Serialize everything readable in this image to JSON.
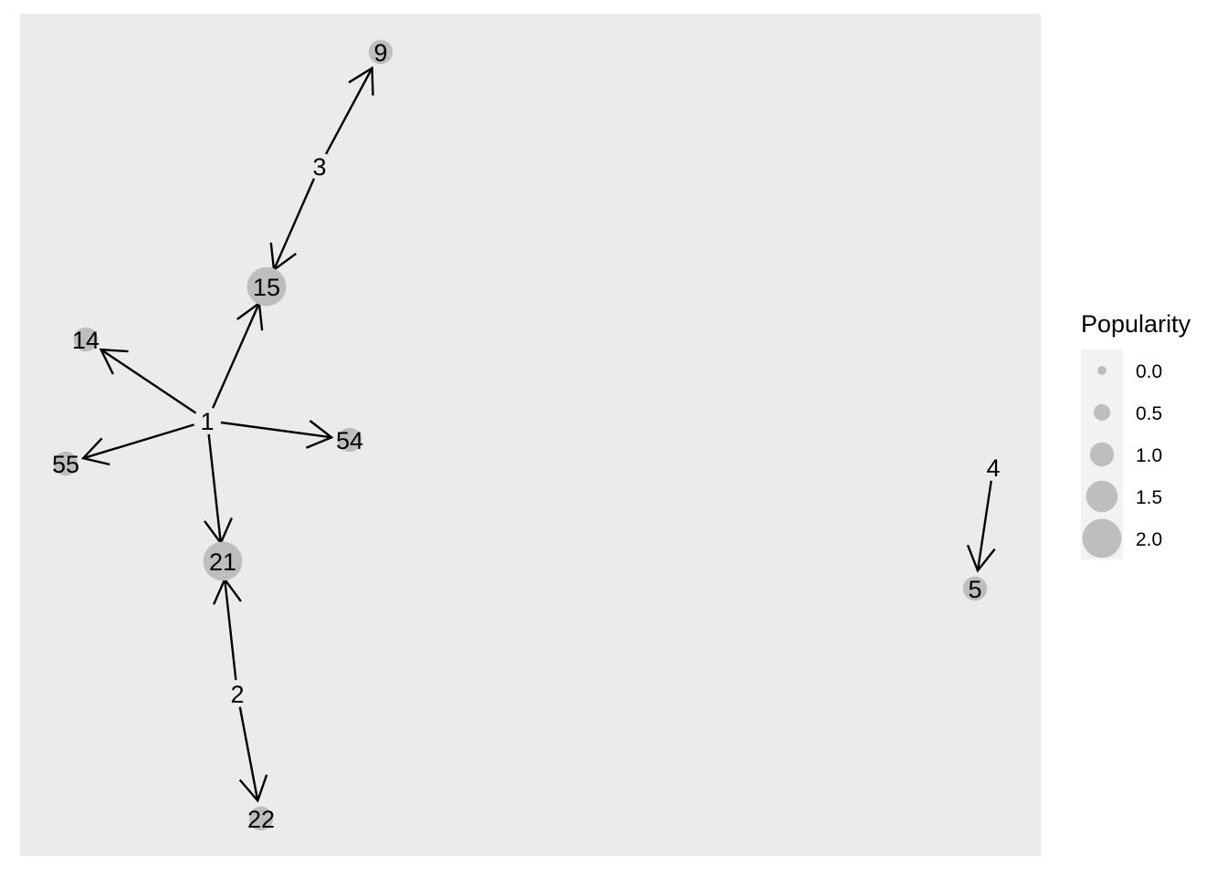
{
  "legend": {
    "title": "Popularity",
    "items": [
      {
        "label": "0.0",
        "value": 0.0
      },
      {
        "label": "0.5",
        "value": 0.5
      },
      {
        "label": "1.0",
        "value": 1.0
      },
      {
        "label": "1.5",
        "value": 1.5
      },
      {
        "label": "2.0",
        "value": 2.0
      }
    ]
  },
  "colors": {
    "panel": "#ebebeb",
    "node": "#bebebe",
    "edge": "#000000",
    "legend_key_bg": "#f2f2f2"
  },
  "nodes": [
    {
      "id": "1",
      "popularity": 0
    },
    {
      "id": "2",
      "popularity": 0
    },
    {
      "id": "3",
      "popularity": 0
    },
    {
      "id": "4",
      "popularity": 0
    },
    {
      "id": "5",
      "popularity": 1
    },
    {
      "id": "9",
      "popularity": 1
    },
    {
      "id": "14",
      "popularity": 1
    },
    {
      "id": "15",
      "popularity": 2
    },
    {
      "id": "21",
      "popularity": 2
    },
    {
      "id": "22",
      "popularity": 1
    },
    {
      "id": "54",
      "popularity": 1
    },
    {
      "id": "55",
      "popularity": 1
    }
  ],
  "edges": [
    {
      "from": "3",
      "to": "9"
    },
    {
      "from": "3",
      "to": "15"
    },
    {
      "from": "1",
      "to": "15"
    },
    {
      "from": "1",
      "to": "14"
    },
    {
      "from": "1",
      "to": "55"
    },
    {
      "from": "1",
      "to": "54"
    },
    {
      "from": "1",
      "to": "21"
    },
    {
      "from": "2",
      "to": "21"
    },
    {
      "from": "2",
      "to": "22"
    },
    {
      "from": "4",
      "to": "5"
    }
  ]
}
